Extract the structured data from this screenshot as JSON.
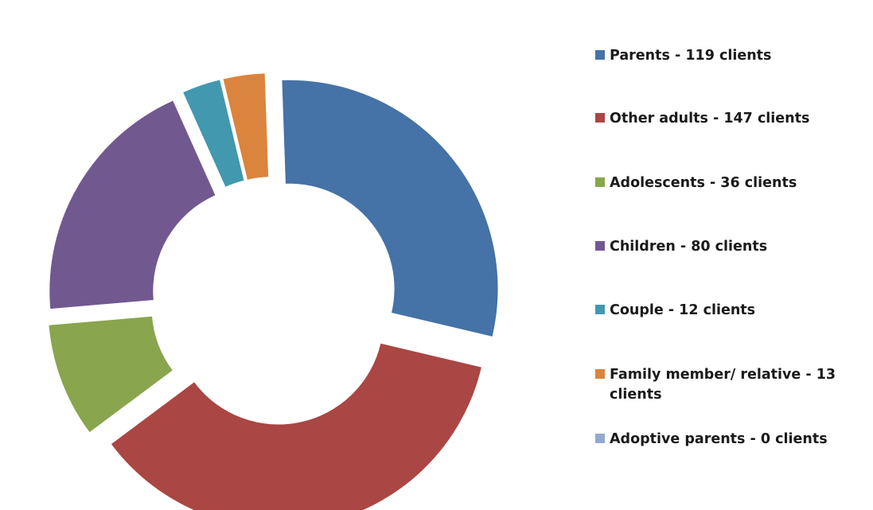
{
  "chart_data": {
    "type": "pie",
    "variant": "donut-exploded",
    "title": "",
    "slices": [
      {
        "label": "Parents",
        "value": 119,
        "legend": "Parents - 119 clients",
        "color": "#4572A7"
      },
      {
        "label": "Other adults",
        "value": 147,
        "legend": "Other adults - 147 clients",
        "color": "#AA4643"
      },
      {
        "label": "Adolescents",
        "value": 36,
        "legend": "Adolescents - 36 clients",
        "color": "#89A54E"
      },
      {
        "label": "Children",
        "value": 80,
        "legend": "Children - 80 clients",
        "color": "#71588F"
      },
      {
        "label": "Couple",
        "value": 12,
        "legend": "Couple - 12 clients",
        "color": "#4198AF"
      },
      {
        "label": "Family member/ relative",
        "value": 13,
        "legend": "Family member/ relative - 13 clients",
        "color": "#DB843D"
      },
      {
        "label": "Adoptive parents",
        "value": 0,
        "legend": "Adoptive parents - 0 clients",
        "color": "#93A9CF"
      }
    ],
    "legend_position": "right"
  }
}
